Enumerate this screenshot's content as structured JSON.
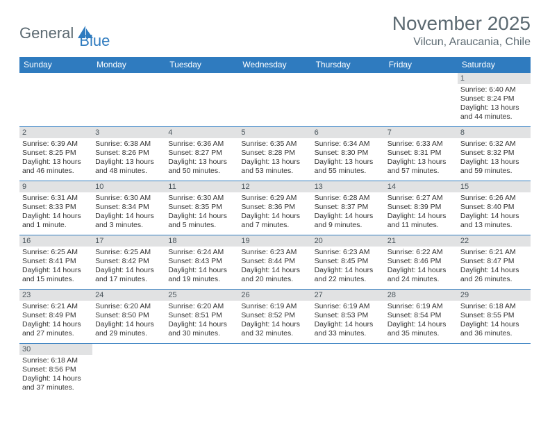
{
  "logo": {
    "text1": "General",
    "text2": "Blue"
  },
  "title": "November 2025",
  "location": "Vilcun, Araucania, Chile",
  "colors": {
    "header_bg": "#2f7bbf",
    "header_fg": "#ffffff",
    "daybar_bg": "#e1e2e3",
    "border": "#2f7bbf",
    "body_bg": "#ffffff"
  },
  "weekdays": [
    "Sunday",
    "Monday",
    "Tuesday",
    "Wednesday",
    "Thursday",
    "Friday",
    "Saturday"
  ],
  "first_weekday_index": 6,
  "days": [
    {
      "n": 1,
      "sunrise": "6:40 AM",
      "sunset": "8:24 PM",
      "daylight": "13 hours and 44 minutes."
    },
    {
      "n": 2,
      "sunrise": "6:39 AM",
      "sunset": "8:25 PM",
      "daylight": "13 hours and 46 minutes."
    },
    {
      "n": 3,
      "sunrise": "6:38 AM",
      "sunset": "8:26 PM",
      "daylight": "13 hours and 48 minutes."
    },
    {
      "n": 4,
      "sunrise": "6:36 AM",
      "sunset": "8:27 PM",
      "daylight": "13 hours and 50 minutes."
    },
    {
      "n": 5,
      "sunrise": "6:35 AM",
      "sunset": "8:28 PM",
      "daylight": "13 hours and 53 minutes."
    },
    {
      "n": 6,
      "sunrise": "6:34 AM",
      "sunset": "8:30 PM",
      "daylight": "13 hours and 55 minutes."
    },
    {
      "n": 7,
      "sunrise": "6:33 AM",
      "sunset": "8:31 PM",
      "daylight": "13 hours and 57 minutes."
    },
    {
      "n": 8,
      "sunrise": "6:32 AM",
      "sunset": "8:32 PM",
      "daylight": "13 hours and 59 minutes."
    },
    {
      "n": 9,
      "sunrise": "6:31 AM",
      "sunset": "8:33 PM",
      "daylight": "14 hours and 1 minute."
    },
    {
      "n": 10,
      "sunrise": "6:30 AM",
      "sunset": "8:34 PM",
      "daylight": "14 hours and 3 minutes."
    },
    {
      "n": 11,
      "sunrise": "6:30 AM",
      "sunset": "8:35 PM",
      "daylight": "14 hours and 5 minutes."
    },
    {
      "n": 12,
      "sunrise": "6:29 AM",
      "sunset": "8:36 PM",
      "daylight": "14 hours and 7 minutes."
    },
    {
      "n": 13,
      "sunrise": "6:28 AM",
      "sunset": "8:37 PM",
      "daylight": "14 hours and 9 minutes."
    },
    {
      "n": 14,
      "sunrise": "6:27 AM",
      "sunset": "8:39 PM",
      "daylight": "14 hours and 11 minutes."
    },
    {
      "n": 15,
      "sunrise": "6:26 AM",
      "sunset": "8:40 PM",
      "daylight": "14 hours and 13 minutes."
    },
    {
      "n": 16,
      "sunrise": "6:25 AM",
      "sunset": "8:41 PM",
      "daylight": "14 hours and 15 minutes."
    },
    {
      "n": 17,
      "sunrise": "6:25 AM",
      "sunset": "8:42 PM",
      "daylight": "14 hours and 17 minutes."
    },
    {
      "n": 18,
      "sunrise": "6:24 AM",
      "sunset": "8:43 PM",
      "daylight": "14 hours and 19 minutes."
    },
    {
      "n": 19,
      "sunrise": "6:23 AM",
      "sunset": "8:44 PM",
      "daylight": "14 hours and 20 minutes."
    },
    {
      "n": 20,
      "sunrise": "6:23 AM",
      "sunset": "8:45 PM",
      "daylight": "14 hours and 22 minutes."
    },
    {
      "n": 21,
      "sunrise": "6:22 AM",
      "sunset": "8:46 PM",
      "daylight": "14 hours and 24 minutes."
    },
    {
      "n": 22,
      "sunrise": "6:21 AM",
      "sunset": "8:47 PM",
      "daylight": "14 hours and 26 minutes."
    },
    {
      "n": 23,
      "sunrise": "6:21 AM",
      "sunset": "8:49 PM",
      "daylight": "14 hours and 27 minutes."
    },
    {
      "n": 24,
      "sunrise": "6:20 AM",
      "sunset": "8:50 PM",
      "daylight": "14 hours and 29 minutes."
    },
    {
      "n": 25,
      "sunrise": "6:20 AM",
      "sunset": "8:51 PM",
      "daylight": "14 hours and 30 minutes."
    },
    {
      "n": 26,
      "sunrise": "6:19 AM",
      "sunset": "8:52 PM",
      "daylight": "14 hours and 32 minutes."
    },
    {
      "n": 27,
      "sunrise": "6:19 AM",
      "sunset": "8:53 PM",
      "daylight": "14 hours and 33 minutes."
    },
    {
      "n": 28,
      "sunrise": "6:19 AM",
      "sunset": "8:54 PM",
      "daylight": "14 hours and 35 minutes."
    },
    {
      "n": 29,
      "sunrise": "6:18 AM",
      "sunset": "8:55 PM",
      "daylight": "14 hours and 36 minutes."
    },
    {
      "n": 30,
      "sunrise": "6:18 AM",
      "sunset": "8:56 PM",
      "daylight": "14 hours and 37 minutes."
    }
  ],
  "labels": {
    "sunrise": "Sunrise:",
    "sunset": "Sunset:",
    "daylight": "Daylight:"
  }
}
